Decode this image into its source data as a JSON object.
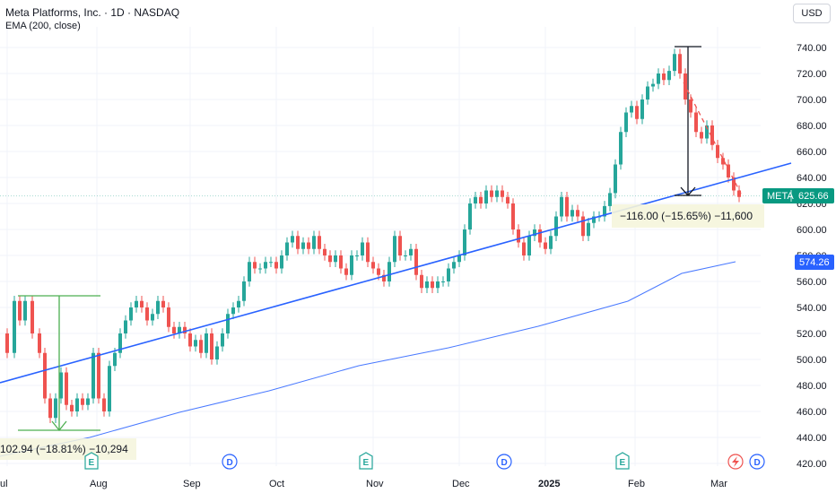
{
  "header": {
    "title": "Meta Platforms, Inc. · 1D · NASDAQ",
    "indicator": "EMA (200, close)",
    "currency": "USD"
  },
  "colors": {
    "up": "#26a69a",
    "down": "#ef5350",
    "trendline": "#2962ff",
    "ema": "#2962ff",
    "measure_up": "#4caf50",
    "measure_down": "#131722",
    "price_label": "#089981",
    "ema_label": "#2962ff"
  },
  "price_axis": {
    "ticks": [
      "740.00",
      "720.00",
      "700.00",
      "680.00",
      "660.00",
      "640.00",
      "620.00",
      "600.00",
      "580.00",
      "560.00",
      "540.00",
      "520.00",
      "500.00",
      "480.00",
      "460.00",
      "440.00",
      "420.00"
    ],
    "current_symbol": "META",
    "current_price": "625.66",
    "ema_value": "574.26"
  },
  "time_axis": {
    "labels": [
      {
        "text": "ul",
        "bold": false
      },
      {
        "text": "Aug",
        "bold": false
      },
      {
        "text": "Sep",
        "bold": false
      },
      {
        "text": "Oct",
        "bold": false
      },
      {
        "text": "Nov",
        "bold": false
      },
      {
        "text": "Dec",
        "bold": false
      },
      {
        "text": "2025",
        "bold": true
      },
      {
        "text": "Feb",
        "bold": false
      },
      {
        "text": "Mar",
        "bold": false
      }
    ]
  },
  "events": [
    "E",
    "D",
    "D",
    "E",
    "D",
    "E",
    "D"
  ],
  "measurements": {
    "left": "102.94 (−18.81%) −10,294",
    "right": "−116.00 (−15.65%) −11,600"
  },
  "chart_data": {
    "type": "candlestick",
    "symbol": "META",
    "interval": "1D",
    "ylim": [
      415,
      750
    ],
    "x_labels": [
      "Jul",
      "Aug",
      "Sep",
      "Oct",
      "Nov",
      "Dec",
      "2025",
      "Feb",
      "Mar"
    ],
    "y_ticks": [
      420,
      440,
      460,
      480,
      500,
      520,
      540,
      560,
      580,
      600,
      620,
      640,
      660,
      680,
      700,
      720,
      740
    ],
    "series": [
      {
        "name": "EMA (200, close)",
        "type": "line",
        "last_value": 574.26
      }
    ],
    "last_price": 625.66,
    "measurements": [
      {
        "label": "102.94 (−18.81%) −10,294",
        "change": -102.94,
        "percent": -18.81
      },
      {
        "label": "−116.00 (−15.65%) −11,600",
        "change": -116.0,
        "percent": -15.65
      }
    ]
  }
}
